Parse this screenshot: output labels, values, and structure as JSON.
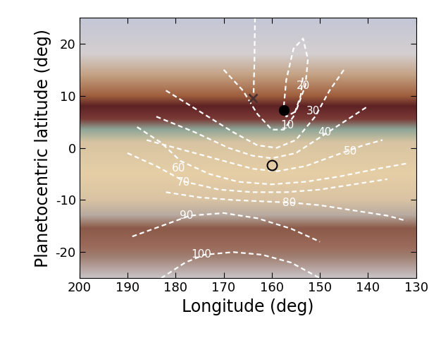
{
  "chart_data": {
    "type": "contour",
    "x_label": "Longitude (deg)",
    "y_label": "Planetocentric latitude (deg)",
    "xlim": [
      200,
      130
    ],
    "xticks": [
      200,
      190,
      180,
      170,
      160,
      150,
      140,
      130
    ],
    "ylim": [
      -25,
      25
    ],
    "yticks": [
      -20,
      -10,
      0,
      10,
      20
    ],
    "color": "#ffffff",
    "line_style": "dashed",
    "contours": [
      {
        "level": null,
        "x": [
          163.5,
          163.6,
          163.8
        ],
        "y": [
          25,
          17,
          10
        ]
      },
      {
        "level": 10,
        "x": [
          170,
          166,
          163,
          160,
          157.5,
          155.5,
          154,
          153.5
        ],
        "y": [
          15,
          11,
          6.5,
          3.5,
          3.5,
          6,
          10,
          14
        ],
        "label_x": 156.7,
        "label_y": 4.3
      },
      {
        "level": 20,
        "x": [
          157.5,
          157,
          155.5,
          153.5,
          152.5,
          153,
          155,
          157,
          157.5
        ],
        "y": [
          8,
          13,
          19,
          21,
          17,
          12,
          7,
          6,
          8
        ],
        "label_x": 153.4,
        "label_y": 11.9
      },
      {
        "level": 30,
        "x": [
          182,
          175,
          168,
          163,
          159,
          155,
          151,
          148,
          145
        ],
        "y": [
          11,
          7,
          3,
          0.5,
          0,
          1.5,
          6,
          11,
          15
        ],
        "label_x": 151.4,
        "label_y": 7
      },
      {
        "level": 40,
        "x": [
          184,
          176,
          169,
          164,
          160,
          155,
          150,
          145,
          140
        ],
        "y": [
          6,
          3,
          0,
          -1.5,
          -2,
          -1,
          2,
          5,
          8
        ],
        "label_x": 149,
        "label_y": 3
      },
      {
        "level": 50,
        "x": [
          186,
          178,
          170,
          164,
          159,
          153,
          147,
          141,
          137
        ],
        "y": [
          1.5,
          -0.5,
          -2.5,
          -4,
          -4.5,
          -3.5,
          -1.5,
          0.5,
          1.5
        ],
        "label_x": 143.6,
        "label_y": -0.7
      },
      {
        "level": 60,
        "x": [
          188,
          183,
          179,
          173,
          167,
          160,
          153,
          146,
          138,
          132
        ],
        "y": [
          4,
          1,
          -2.5,
          -5,
          -6.5,
          -7,
          -6.5,
          -5.5,
          -4,
          -3
        ],
        "label_x": 179.4,
        "label_y": -3.9
      },
      {
        "level": 70,
        "x": [
          190,
          184,
          178,
          171,
          164,
          157,
          150,
          143,
          136
        ],
        "y": [
          -1,
          -3.5,
          -6.5,
          -8,
          -8.5,
          -8.5,
          -8,
          -7,
          -6
        ],
        "label_x": 178.4,
        "label_y": -6.6
      },
      {
        "level": 80,
        "x": [
          182,
          175,
          168,
          161,
          156,
          150,
          143,
          136,
          132
        ],
        "y": [
          -8.5,
          -9.5,
          -10,
          -10.3,
          -10.5,
          -11,
          -12,
          -13,
          -14
        ],
        "label_x": 156.4,
        "label_y": -10.5
      },
      {
        "level": 90,
        "x": [
          189,
          183,
          177,
          170,
          163,
          156,
          150
        ],
        "y": [
          -17,
          -15,
          -13,
          -12.5,
          -13.5,
          -15.5,
          -18
        ],
        "label_x": 177.7,
        "label_y": -13
      },
      {
        "level": 100,
        "x": [
          183,
          178,
          174,
          168,
          162,
          156,
          150
        ],
        "y": [
          -25,
          -22,
          -20.5,
          -20,
          -20.5,
          -22,
          -25
        ],
        "label_x": 174.7,
        "label_y": -20.4
      }
    ],
    "markers": [
      {
        "x": 164,
        "y": 9.5,
        "marker": "x"
      },
      {
        "x": 157.5,
        "y": 7.3,
        "marker": "filled_circle"
      },
      {
        "x": 160,
        "y": -3.3,
        "marker": "open_circle"
      }
    ]
  }
}
